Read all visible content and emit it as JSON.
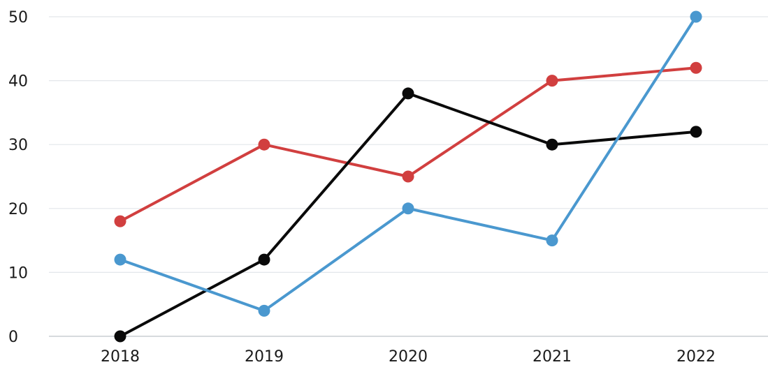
{
  "chart_data": {
    "type": "line",
    "title": "",
    "xlabel": "",
    "ylabel": "",
    "x": [
      "2018",
      "2019",
      "2020",
      "2021",
      "2022"
    ],
    "ylim": [
      0,
      50
    ],
    "yticks": [
      "0",
      "10",
      "20",
      "30",
      "40",
      "50"
    ],
    "grid": true,
    "legend": "none",
    "series": [
      {
        "color": "#d13f3f",
        "values": [
          18,
          30,
          25,
          40,
          42
        ]
      },
      {
        "color": "#0a0a0a",
        "values": [
          0,
          12,
          38,
          30,
          32
        ]
      },
      {
        "color": "#4a98cf",
        "values": [
          12,
          4,
          20,
          15,
          50
        ]
      }
    ]
  }
}
